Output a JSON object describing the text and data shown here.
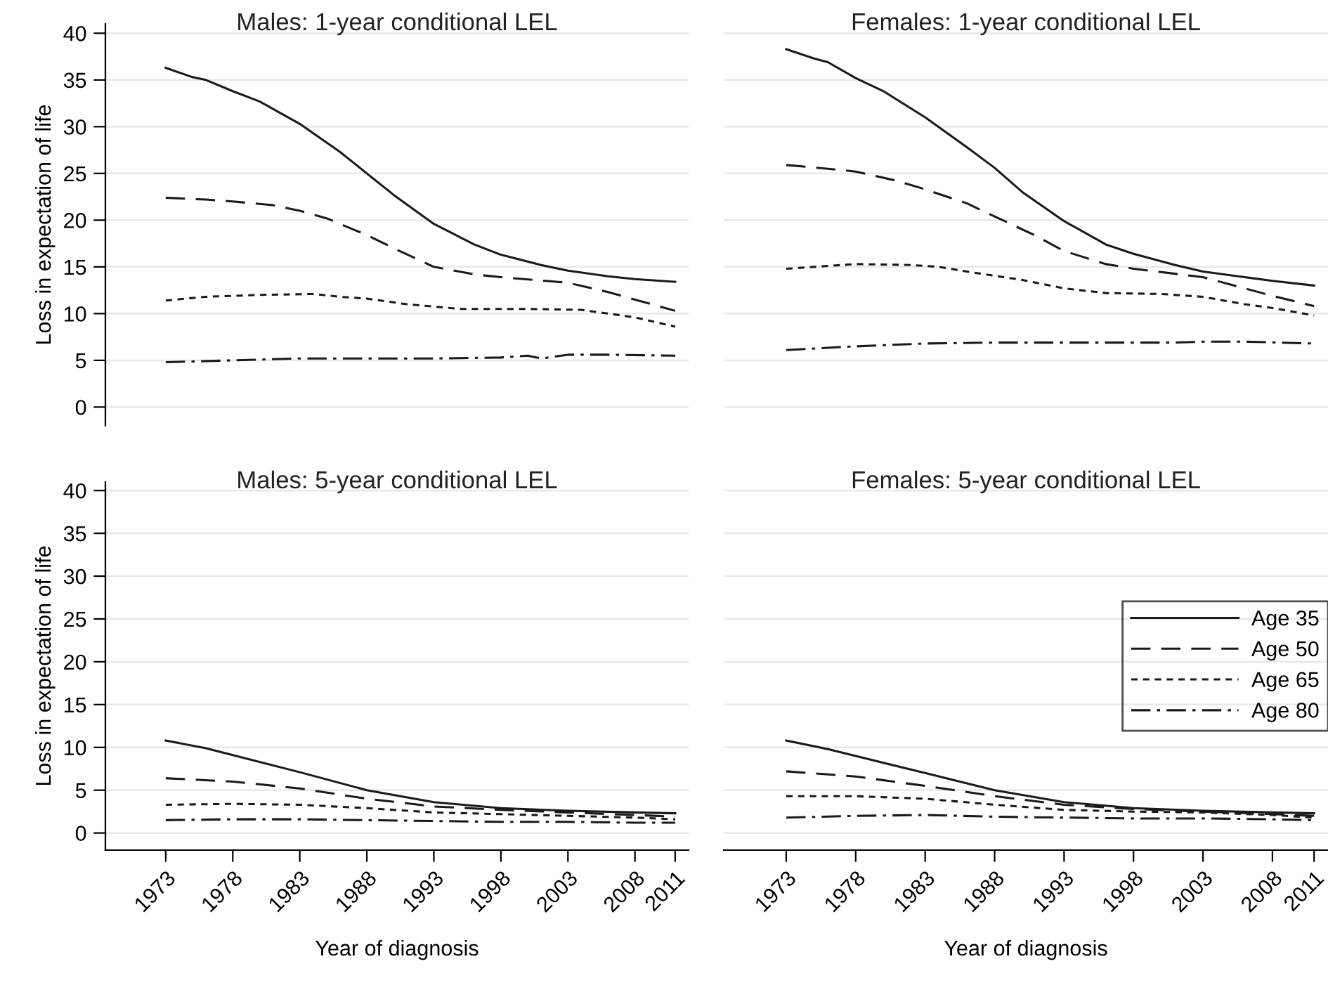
{
  "chart_data": [
    {
      "type": "line",
      "title": "Males: 1-year conditional LEL",
      "ylabel": "Loss in expectation of life",
      "xlim": [
        1968.5,
        2012
      ],
      "xticks": [
        1973,
        1978,
        1983,
        1988,
        1993,
        1998,
        2003,
        2008,
        2011
      ],
      "ylim": [
        -2,
        41
      ],
      "yticks": [
        0,
        5,
        10,
        15,
        20,
        25,
        30,
        35,
        40
      ],
      "grid": "y",
      "tick_labels": "y",
      "legend": false,
      "series": [
        {
          "color": "#1a1a1a",
          "line_style": "solid",
          "x": [
            1973,
            1975,
            1976,
            1978,
            1980,
            1983,
            1986,
            1988,
            1990,
            1993,
            1996,
            1998,
            2001,
            2003,
            2006,
            2008,
            2011
          ],
          "values": [
            36.3,
            35.3,
            35.0,
            33.8,
            32.7,
            30.3,
            27.3,
            25.0,
            22.7,
            19.6,
            17.4,
            16.3,
            15.2,
            14.6,
            14.0,
            13.7,
            13.4
          ]
        },
        {
          "color": "#1a1a1a",
          "line_style": "dashed",
          "x": [
            1973,
            1976,
            1978,
            1981,
            1983,
            1985,
            1988,
            1990,
            1993,
            1996,
            1998,
            2003,
            2006,
            2008,
            2011
          ],
          "values": [
            22.4,
            22.2,
            22.0,
            21.6,
            21.0,
            20.2,
            18.4,
            17.0,
            15.0,
            14.2,
            13.9,
            13.3,
            12.3,
            11.5,
            10.3
          ]
        },
        {
          "color": "#1a1a1a",
          "line_style": "dotted",
          "x": [
            1973,
            1976,
            1980,
            1984,
            1986,
            1988,
            1991,
            1995,
            2000,
            2004,
            2008,
            2011
          ],
          "values": [
            11.4,
            11.8,
            12.0,
            12.1,
            11.8,
            11.6,
            11.0,
            10.5,
            10.5,
            10.4,
            9.6,
            8.6
          ]
        },
        {
          "color": "#1a1a1a",
          "line_style": "dashdot",
          "x": [
            1973,
            1978,
            1983,
            1988,
            1993,
            1998,
            2000,
            2001,
            2003,
            2006,
            2011
          ],
          "values": [
            4.8,
            5.0,
            5.2,
            5.2,
            5.2,
            5.3,
            5.5,
            5.2,
            5.6,
            5.6,
            5.5
          ]
        }
      ]
    },
    {
      "type": "line",
      "title": "Females: 1-year conditional LEL",
      "xlim": [
        1968.5,
        2012
      ],
      "xticks": [
        1973,
        1978,
        1983,
        1988,
        1993,
        1998,
        2003,
        2008,
        2011
      ],
      "yticks": [
        0,
        5,
        10,
        15,
        20,
        25,
        30,
        35,
        40
      ],
      "grid": "y",
      "tick_labels": false,
      "legend": false,
      "series": [
        {
          "color": "#1a1a1a",
          "line_style": "solid",
          "x": [
            1973,
            1975,
            1976,
            1978,
            1980,
            1983,
            1986,
            1988,
            1990,
            1993,
            1996,
            1998,
            2001,
            2003,
            2006,
            2008,
            2011
          ],
          "values": [
            38.3,
            37.3,
            36.9,
            35.2,
            33.8,
            31.0,
            27.8,
            25.6,
            23.0,
            19.9,
            17.4,
            16.4,
            15.2,
            14.5,
            13.9,
            13.5,
            13.0
          ]
        },
        {
          "color": "#1a1a1a",
          "line_style": "dashed",
          "x": [
            1973,
            1976,
            1978,
            1981,
            1983,
            1986,
            1988,
            1991,
            1993,
            1996,
            1998,
            2003,
            2006,
            2008,
            2011
          ],
          "values": [
            25.9,
            25.5,
            25.2,
            24.2,
            23.3,
            21.8,
            20.4,
            18.3,
            16.7,
            15.3,
            14.8,
            13.9,
            12.7,
            11.9,
            10.8
          ]
        },
        {
          "color": "#1a1a1a",
          "line_style": "dotted",
          "x": [
            1973,
            1976,
            1978,
            1982,
            1984,
            1986,
            1990,
            1993,
            1996,
            2000,
            2003,
            2006,
            2008,
            2011
          ],
          "values": [
            14.8,
            15.1,
            15.3,
            15.2,
            15.0,
            14.5,
            13.6,
            12.7,
            12.2,
            12.1,
            11.8,
            11.0,
            10.6,
            9.8
          ]
        },
        {
          "color": "#1a1a1a",
          "line_style": "dashdot",
          "x": [
            1973,
            1978,
            1983,
            1988,
            1993,
            1998,
            2001,
            2003,
            2006,
            2011
          ],
          "values": [
            6.1,
            6.5,
            6.8,
            6.9,
            6.9,
            6.9,
            6.9,
            7.0,
            7.0,
            6.8
          ]
        }
      ]
    },
    {
      "type": "line",
      "title": "Males: 5-year conditional LEL",
      "xlabel": "Year of diagnosis",
      "ylabel": "Loss in expectation of life",
      "xlim": [
        1968.5,
        2012
      ],
      "xticks": [
        1973,
        1978,
        1983,
        1988,
        1993,
        1998,
        2003,
        2008,
        2011
      ],
      "ylim": [
        -2,
        41
      ],
      "yticks": [
        0,
        5,
        10,
        15,
        20,
        25,
        30,
        35,
        40
      ],
      "grid": "y",
      "legend": false,
      "series": [
        {
          "color": "#1a1a1a",
          "line_style": "solid",
          "x": [
            1973,
            1976,
            1978,
            1983,
            1988,
            1993,
            1998,
            2003,
            2008,
            2011
          ],
          "values": [
            10.8,
            9.9,
            9.1,
            7.1,
            5.0,
            3.6,
            2.9,
            2.6,
            2.4,
            2.3
          ]
        },
        {
          "color": "#1a1a1a",
          "line_style": "dashed",
          "x": [
            1973,
            1978,
            1983,
            1988,
            1993,
            1998,
            2003,
            2008,
            2011
          ],
          "values": [
            6.4,
            6.0,
            5.2,
            4.0,
            3.1,
            2.7,
            2.4,
            2.1,
            1.9
          ]
        },
        {
          "color": "#1a1a1a",
          "line_style": "dotted",
          "x": [
            1973,
            1978,
            1983,
            1988,
            1993,
            1998,
            2003,
            2008,
            2011
          ],
          "values": [
            3.3,
            3.4,
            3.3,
            2.9,
            2.4,
            2.2,
            2.0,
            1.8,
            1.6
          ]
        },
        {
          "color": "#1a1a1a",
          "line_style": "dashdot",
          "x": [
            1973,
            1978,
            1983,
            1988,
            1993,
            1998,
            2003,
            2008,
            2011
          ],
          "values": [
            1.5,
            1.6,
            1.6,
            1.5,
            1.4,
            1.3,
            1.3,
            1.2,
            1.2
          ]
        }
      ]
    },
    {
      "type": "line",
      "title": "Females: 5-year conditional LEL",
      "xlabel": "Year of diagnosis",
      "xlim": [
        1968.5,
        2012
      ],
      "xticks": [
        1973,
        1978,
        1983,
        1988,
        1993,
        1998,
        2003,
        2008,
        2011
      ],
      "yticks": [
        0,
        5,
        10,
        15,
        20,
        25,
        30,
        35,
        40
      ],
      "grid": "y",
      "tick_labels": "x",
      "legend": "right",
      "series": [
        {
          "name": "Age 35",
          "color": "#1a1a1a",
          "line_style": "solid",
          "x": [
            1973,
            1976,
            1978,
            1983,
            1988,
            1993,
            1998,
            2003,
            2008,
            2011
          ],
          "values": [
            10.8,
            9.8,
            9.0,
            7.0,
            5.0,
            3.6,
            2.9,
            2.6,
            2.4,
            2.3
          ]
        },
        {
          "name": "Age 50",
          "color": "#1a1a1a",
          "line_style": "dashed",
          "x": [
            1973,
            1978,
            1983,
            1988,
            1993,
            1998,
            2003,
            2008,
            2011
          ],
          "values": [
            7.2,
            6.6,
            5.5,
            4.3,
            3.3,
            2.8,
            2.5,
            2.2,
            2.0
          ]
        },
        {
          "name": "Age 65",
          "color": "#1a1a1a",
          "line_style": "dotted",
          "x": [
            1973,
            1978,
            1983,
            1988,
            1993,
            1998,
            2003,
            2008,
            2011
          ],
          "values": [
            4.3,
            4.3,
            4.0,
            3.3,
            2.7,
            2.5,
            2.4,
            2.1,
            1.8
          ]
        },
        {
          "name": "Age 80",
          "color": "#1a1a1a",
          "line_style": "dashdot",
          "x": [
            1973,
            1978,
            1983,
            1988,
            1993,
            1998,
            2003,
            2008,
            2011
          ],
          "values": [
            1.8,
            2.0,
            2.1,
            1.9,
            1.8,
            1.7,
            1.7,
            1.6,
            1.5
          ]
        }
      ]
    }
  ]
}
